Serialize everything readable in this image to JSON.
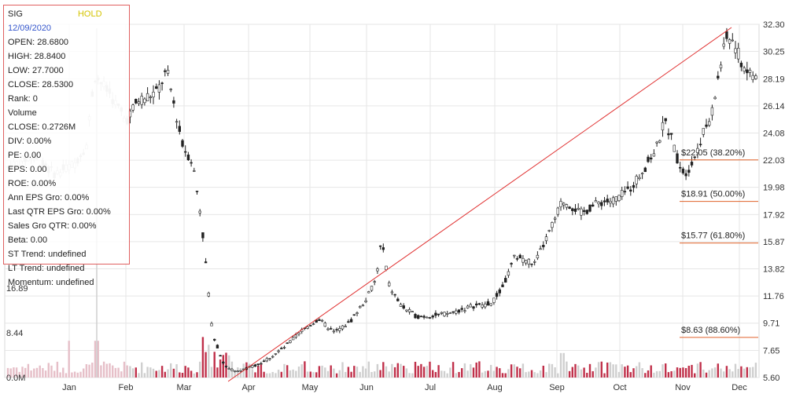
{
  "panel": {
    "ticker": "SIG",
    "rating": "HOLD",
    "date": "12/09/2020",
    "lines": [
      "OPEN: 28.6800",
      "HIGH: 28.8400",
      "LOW: 27.7000",
      "CLOSE: 28.5300",
      "Rank: 0",
      "Volume",
      "CLOSE: 0.2726M",
      "DIV: 0.00%",
      "PE: 0.00",
      "EPS: 0.00",
      "ROE: 0.00%",
      "Ann EPS Gro: 0.00%",
      "Last QTR EPS Gro: 0.00%",
      "Sales Gro QTR: 0.00%",
      "Beta: 0.00",
      "ST Trend: undefined",
      "LT Trend: undefined",
      "Momentum: undefined"
    ]
  },
  "chart_data": {
    "type": "candlestick",
    "price_axis": {
      "ticks": [
        "32.30",
        "30.25",
        "28.19",
        "26.14",
        "24.08",
        "22.03",
        "19.98",
        "17.92",
        "15.87",
        "13.82",
        "11.76",
        "9.71",
        "7.65",
        "5.60"
      ],
      "ylim": [
        5.6,
        32.3
      ]
    },
    "volume_axis": {
      "ticks": [
        "16.89",
        "8.44",
        "0.0M"
      ]
    },
    "x_labels": [
      "Jan",
      "Feb",
      "Mar",
      "Apr",
      "May",
      "Jun",
      "Jul",
      "Aug",
      "Sep",
      "Oct",
      "Nov",
      "Dec"
    ],
    "fibonacci_levels": [
      {
        "price": 22.05,
        "label": "$22.05 (38.20%)"
      },
      {
        "price": 18.91,
        "label": "$18.91 (50.00%)"
      },
      {
        "price": 15.77,
        "label": "$15.77 (61.80%)"
      },
      {
        "price": 8.63,
        "label": "$8.63 (88.60%)"
      }
    ],
    "trend_line": {
      "from": {
        "month": "Apr",
        "price": 5.6
      },
      "to": {
        "month": "Dec",
        "price": 32.3
      }
    },
    "colors": {
      "up": "#5cb85c",
      "down": "#d63a4a",
      "fib": "#e0622a",
      "trend": "#e03030",
      "grid": "#e6e6e6"
    }
  }
}
